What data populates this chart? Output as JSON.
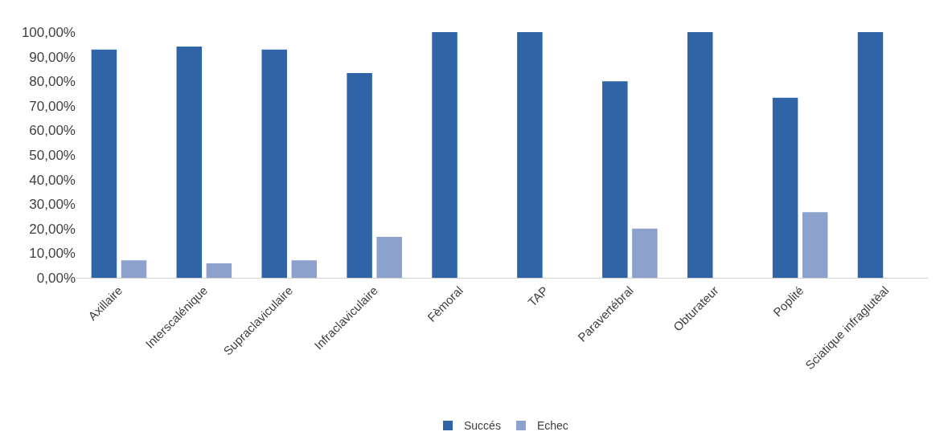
{
  "chart_data": {
    "type": "bar",
    "categories": [
      "Axillaire",
      "Interscalénique",
      "Supraclaviculaire",
      "Infraclaviculaire",
      "Fèmoral",
      "TAP",
      "Paravertébral",
      "Obturateur",
      "Poplité",
      "Sciatique infraglutèal"
    ],
    "series": [
      {
        "name": "Succés",
        "color": "#2f64a6",
        "values": [
          92.9,
          94.1,
          92.9,
          83.3,
          100,
          100,
          80,
          100,
          73.3,
          100
        ]
      },
      {
        "name": "Echec",
        "color": "#8ca2cc",
        "values": [
          7.1,
          5.9,
          7.1,
          16.7,
          0,
          0,
          20,
          0,
          26.7,
          0
        ]
      }
    ],
    "ylim": [
      0,
      100
    ],
    "yticks": [
      {
        "value": 0,
        "label": "0,00%"
      },
      {
        "value": 10,
        "label": "10,00%"
      },
      {
        "value": 20,
        "label": "20,00%"
      },
      {
        "value": 30,
        "label": "30,00%"
      },
      {
        "value": 40,
        "label": "40,00%"
      },
      {
        "value": 50,
        "label": "50,00%"
      },
      {
        "value": 60,
        "label": "60,00%"
      },
      {
        "value": 70,
        "label": "70,00%"
      },
      {
        "value": 80,
        "label": "80,00%"
      },
      {
        "value": 90,
        "label": "90,00%"
      },
      {
        "value": 100,
        "label": "100,00%"
      }
    ],
    "grid": false,
    "legend": "bottom"
  }
}
